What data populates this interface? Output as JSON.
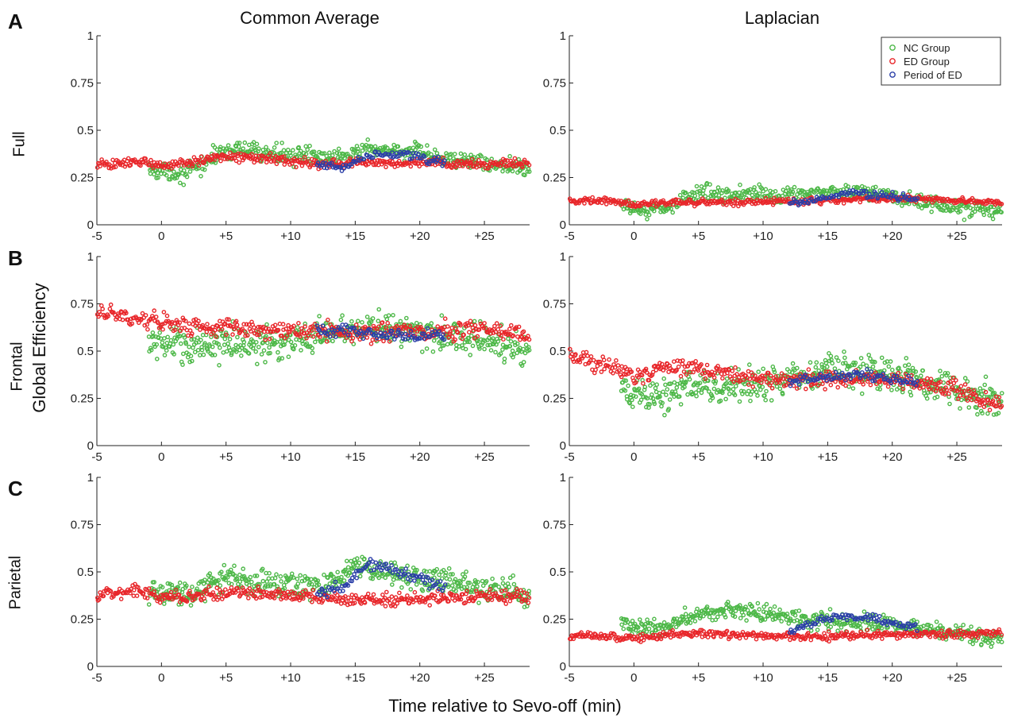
{
  "figure": {
    "column_titles": [
      "Common Average",
      "Laplacian"
    ],
    "row_letters": [
      "A",
      "B",
      "C"
    ],
    "row_labels": [
      "Full",
      "Frontal",
      "Parietal"
    ],
    "ylabel": "Global Efficiency",
    "xlabel": "Time relative to Sevo-off (min)"
  },
  "colors": {
    "nc": "#4db848",
    "ed": "#e8262a",
    "period": "#2b3fa8"
  },
  "chart_data": [
    {
      "type": "scatter",
      "panel": "A-left",
      "xlim": [
        -5,
        28.5
      ],
      "ylim": [
        0,
        1
      ],
      "x_ticks": [
        "-5",
        "0",
        "+5",
        "+10",
        "+15",
        "+20",
        "+25"
      ],
      "y_ticks": [
        "0",
        "0.25",
        "0.5",
        "0.75",
        "1"
      ],
      "series": [
        {
          "name": "NC Group",
          "start": -1,
          "end": 28.5,
          "segments": [
            [
              -1,
              0.29
            ],
            [
              2,
              0.27
            ],
            [
              5,
              0.4
            ],
            [
              8,
              0.38
            ],
            [
              12,
              0.36
            ],
            [
              15,
              0.38
            ],
            [
              18,
              0.4
            ],
            [
              22,
              0.35
            ],
            [
              26,
              0.32
            ],
            [
              28.5,
              0.29
            ]
          ],
          "spread": 0.07,
          "count": 440
        },
        {
          "name": "ED Group",
          "start": -5,
          "end": 28.5,
          "segments": [
            [
              -5,
              0.32
            ],
            [
              -2,
              0.33
            ],
            [
              0,
              0.31
            ],
            [
              3,
              0.34
            ],
            [
              5,
              0.36
            ],
            [
              8,
              0.35
            ],
            [
              12,
              0.32
            ],
            [
              15,
              0.33
            ],
            [
              20,
              0.33
            ],
            [
              25,
              0.32
            ],
            [
              28.5,
              0.33
            ]
          ],
          "spread": 0.035,
          "count": 420
        },
        {
          "name": "Period of ED",
          "start": 12,
          "end": 22,
          "segments": [
            [
              12,
              0.32
            ],
            [
              14,
              0.3
            ],
            [
              16,
              0.37
            ],
            [
              19,
              0.37
            ],
            [
              22,
              0.33
            ]
          ],
          "spread": 0.03,
          "count": 90
        }
      ]
    },
    {
      "type": "scatter",
      "panel": "A-right",
      "xlim": [
        -5,
        28.5
      ],
      "ylim": [
        0,
        1
      ],
      "x_ticks": [
        "-5",
        "0",
        "+5",
        "+10",
        "+15",
        "+20",
        "+25"
      ],
      "y_ticks": [
        "0",
        "0.25",
        "0.5",
        "0.75",
        "1"
      ],
      "legend": {
        "position": "top-right",
        "entries": [
          "NC Group",
          "ED Group",
          "Period of ED"
        ]
      },
      "series": [
        {
          "name": "NC Group",
          "start": -1,
          "end": 28.5,
          "segments": [
            [
              -1,
              0.09
            ],
            [
              2,
              0.08
            ],
            [
              5,
              0.17
            ],
            [
              10,
              0.16
            ],
            [
              15,
              0.17
            ],
            [
              18,
              0.18
            ],
            [
              22,
              0.12
            ],
            [
              26,
              0.08
            ],
            [
              28.5,
              0.07
            ]
          ],
          "spread": 0.06,
          "count": 440
        },
        {
          "name": "ED Group",
          "start": -5,
          "end": 28.5,
          "segments": [
            [
              -5,
              0.12
            ],
            [
              -2,
              0.13
            ],
            [
              0,
              0.11
            ],
            [
              5,
              0.12
            ],
            [
              10,
              0.12
            ],
            [
              15,
              0.13
            ],
            [
              20,
              0.14
            ],
            [
              25,
              0.13
            ],
            [
              28.5,
              0.11
            ]
          ],
          "spread": 0.025,
          "count": 420
        },
        {
          "name": "Period of ED",
          "start": 12,
          "end": 22,
          "segments": [
            [
              12,
              0.12
            ],
            [
              14,
              0.13
            ],
            [
              17,
              0.17
            ],
            [
              20,
              0.15
            ],
            [
              22,
              0.13
            ]
          ],
          "spread": 0.03,
          "count": 90
        }
      ]
    },
    {
      "type": "scatter",
      "panel": "B-left",
      "xlim": [
        -5,
        28.5
      ],
      "ylim": [
        0,
        1
      ],
      "x_ticks": [
        "-5",
        "0",
        "+5",
        "+10",
        "+15",
        "+20",
        "+25"
      ],
      "y_ticks": [
        "0",
        "0.25",
        "0.5",
        "0.75",
        "1"
      ],
      "series": [
        {
          "name": "NC Group",
          "start": -1,
          "end": 28.5,
          "segments": [
            [
              -1,
              0.55
            ],
            [
              2,
              0.52
            ],
            [
              5,
              0.55
            ],
            [
              8,
              0.53
            ],
            [
              12,
              0.58
            ],
            [
              15,
              0.62
            ],
            [
              18,
              0.62
            ],
            [
              22,
              0.58
            ],
            [
              26,
              0.55
            ],
            [
              28.5,
              0.5
            ]
          ],
          "spread": 0.13,
          "count": 500
        },
        {
          "name": "ED Group",
          "start": -5,
          "end": 28.5,
          "segments": [
            [
              -5,
              0.7
            ],
            [
              -2,
              0.68
            ],
            [
              0,
              0.65
            ],
            [
              3,
              0.63
            ],
            [
              6,
              0.62
            ],
            [
              10,
              0.6
            ],
            [
              15,
              0.6
            ],
            [
              20,
              0.6
            ],
            [
              25,
              0.62
            ],
            [
              28.5,
              0.58
            ]
          ],
          "spread": 0.07,
          "count": 420
        },
        {
          "name": "Period of ED",
          "start": 12,
          "end": 22,
          "segments": [
            [
              12,
              0.62
            ],
            [
              15,
              0.6
            ],
            [
              18,
              0.58
            ],
            [
              22,
              0.58
            ]
          ],
          "spread": 0.05,
          "count": 90
        }
      ]
    },
    {
      "type": "scatter",
      "panel": "B-right",
      "xlim": [
        -5,
        28.5
      ],
      "ylim": [
        0,
        1
      ],
      "x_ticks": [
        "-5",
        "0",
        "+5",
        "+10",
        "+15",
        "+20",
        "+25"
      ],
      "y_ticks": [
        "0",
        "0.25",
        "0.5",
        "0.75",
        "1"
      ],
      "series": [
        {
          "name": "NC Group",
          "start": -1,
          "end": 28.5,
          "segments": [
            [
              -1,
              0.28
            ],
            [
              2,
              0.26
            ],
            [
              5,
              0.32
            ],
            [
              8,
              0.3
            ],
            [
              12,
              0.35
            ],
            [
              16,
              0.4
            ],
            [
              20,
              0.38
            ],
            [
              24,
              0.32
            ],
            [
              28.5,
              0.22
            ]
          ],
          "spread": 0.13,
          "count": 500
        },
        {
          "name": "ED Group",
          "start": -5,
          "end": 28.5,
          "segments": [
            [
              -5,
              0.48
            ],
            [
              -2,
              0.42
            ],
            [
              0,
              0.36
            ],
            [
              3,
              0.42
            ],
            [
              6,
              0.4
            ],
            [
              10,
              0.35
            ],
            [
              15,
              0.35
            ],
            [
              20,
              0.35
            ],
            [
              25,
              0.3
            ],
            [
              28.5,
              0.2
            ]
          ],
          "spread": 0.07,
          "count": 420
        },
        {
          "name": "Period of ED",
          "start": 12,
          "end": 22,
          "segments": [
            [
              12,
              0.34
            ],
            [
              15,
              0.36
            ],
            [
              18,
              0.38
            ],
            [
              22,
              0.33
            ]
          ],
          "spread": 0.04,
          "count": 90
        }
      ]
    },
    {
      "type": "scatter",
      "panel": "C-left",
      "xlim": [
        -5,
        28.5
      ],
      "ylim": [
        0,
        1
      ],
      "x_ticks": [
        "-5",
        "0",
        "+5",
        "+10",
        "+15",
        "+20",
        "+25"
      ],
      "y_ticks": [
        "0",
        "0.25",
        "0.5",
        "0.75",
        "1"
      ],
      "series": [
        {
          "name": "NC Group",
          "start": -1,
          "end": 28.5,
          "segments": [
            [
              -1,
              0.4
            ],
            [
              2,
              0.38
            ],
            [
              5,
              0.48
            ],
            [
              8,
              0.44
            ],
            [
              12,
              0.42
            ],
            [
              15,
              0.52
            ],
            [
              18,
              0.5
            ],
            [
              22,
              0.45
            ],
            [
              26,
              0.4
            ],
            [
              28.5,
              0.38
            ]
          ],
          "spread": 0.1,
          "count": 500
        },
        {
          "name": "ED Group",
          "start": -5,
          "end": 28.5,
          "segments": [
            [
              -5,
              0.38
            ],
            [
              -2,
              0.4
            ],
            [
              0,
              0.36
            ],
            [
              3,
              0.38
            ],
            [
              6,
              0.4
            ],
            [
              10,
              0.37
            ],
            [
              15,
              0.35
            ],
            [
              20,
              0.35
            ],
            [
              25,
              0.38
            ],
            [
              28.5,
              0.37
            ]
          ],
          "spread": 0.05,
          "count": 420
        },
        {
          "name": "Period of ED",
          "start": 12,
          "end": 22,
          "segments": [
            [
              12,
              0.38
            ],
            [
              14,
              0.42
            ],
            [
              16,
              0.55
            ],
            [
              18,
              0.5
            ],
            [
              22,
              0.42
            ]
          ],
          "spread": 0.05,
          "count": 90
        }
      ]
    },
    {
      "type": "scatter",
      "panel": "C-right",
      "xlim": [
        -5,
        28.5
      ],
      "ylim": [
        0,
        1
      ],
      "x_ticks": [
        "-5",
        "0",
        "+5",
        "+10",
        "+15",
        "+20",
        "+25"
      ],
      "y_ticks": [
        "0",
        "0.25",
        "0.5",
        "0.75",
        "1"
      ],
      "series": [
        {
          "name": "NC Group",
          "start": -1,
          "end": 28.5,
          "segments": [
            [
              -1,
              0.22
            ],
            [
              2,
              0.2
            ],
            [
              5,
              0.28
            ],
            [
              9,
              0.3
            ],
            [
              12,
              0.26
            ],
            [
              16,
              0.24
            ],
            [
              20,
              0.22
            ],
            [
              24,
              0.18
            ],
            [
              28.5,
              0.14
            ]
          ],
          "spread": 0.07,
          "count": 480
        },
        {
          "name": "ED Group",
          "start": -5,
          "end": 28.5,
          "segments": [
            [
              -5,
              0.16
            ],
            [
              -2,
              0.16
            ],
            [
              0,
              0.15
            ],
            [
              5,
              0.18
            ],
            [
              10,
              0.16
            ],
            [
              15,
              0.16
            ],
            [
              20,
              0.17
            ],
            [
              25,
              0.17
            ],
            [
              28.5,
              0.18
            ]
          ],
          "spread": 0.03,
          "count": 420
        },
        {
          "name": "Period of ED",
          "start": 12,
          "end": 22,
          "segments": [
            [
              12,
              0.18
            ],
            [
              15,
              0.26
            ],
            [
              18,
              0.26
            ],
            [
              22,
              0.2
            ]
          ],
          "spread": 0.03,
          "count": 90
        }
      ]
    }
  ]
}
